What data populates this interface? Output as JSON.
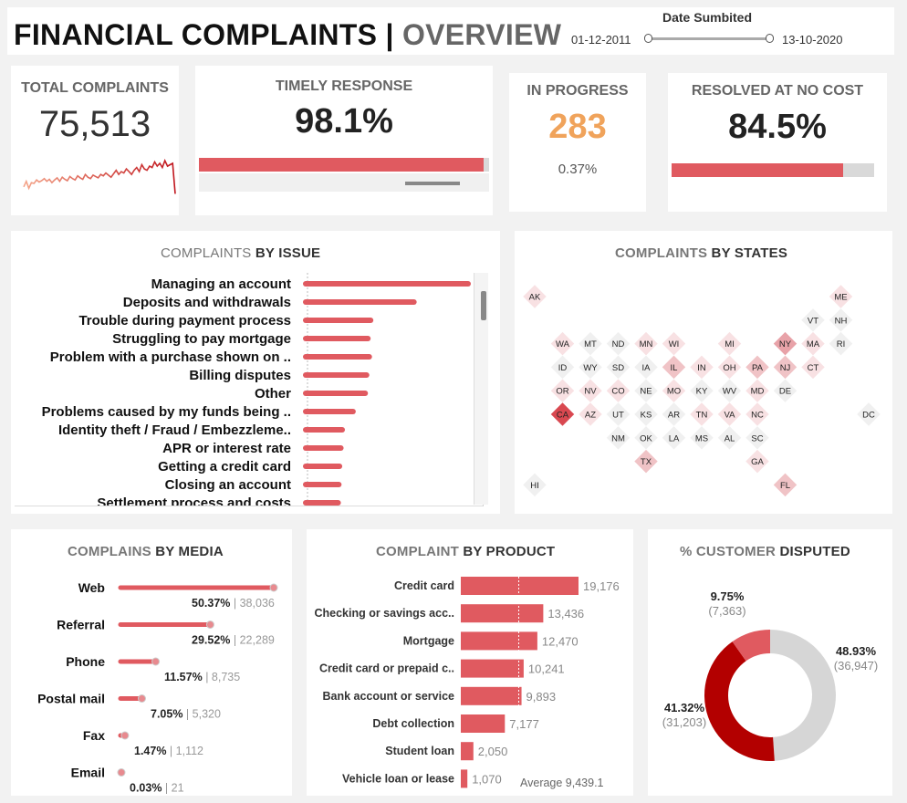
{
  "header": {
    "title": "FINANCIAL COMPLAINTS",
    "separator": "|",
    "subtitle": "OVERVIEW",
    "date_label": "Date Sumbited",
    "date_start": "01-12-2011",
    "date_end": "13-10-2020"
  },
  "kpis": {
    "total": {
      "label": "TOTAL COMPLAINTS",
      "value": "75,513"
    },
    "timely": {
      "label": "TIMELY RESPONSE",
      "value": "98.1%",
      "fraction": 0.981
    },
    "progress": {
      "label": "IN PROGRESS",
      "value": "283",
      "pct": "0.37%"
    },
    "resolved": {
      "label": "RESOLVED AT NO COST",
      "value": "84.5%",
      "fraction": 0.845
    }
  },
  "colors": {
    "accent": "#e05a60",
    "orange": "#f0a35b",
    "dark_red": "#b30000",
    "grey": "#d9d9d9"
  },
  "sparkline": [
    1400,
    1800,
    1300,
    1700,
    1650,
    1900,
    1750,
    1850,
    2000,
    1800,
    1950,
    1700,
    1900,
    2050,
    1800,
    2100,
    1950,
    1850,
    2150,
    2000,
    1900,
    2200,
    2050,
    1950,
    2300,
    2100,
    2000,
    2250,
    2150,
    2050,
    2300,
    2200,
    2400,
    2250,
    2100,
    2350,
    2600,
    2300,
    2500,
    2400,
    2700,
    2500,
    2300,
    2600,
    2800,
    2500,
    3000,
    2700,
    2600,
    2900,
    2800,
    3200,
    2900,
    3100,
    2800,
    3300,
    2900,
    3000,
    3100,
    900
  ],
  "sections": {
    "issue": {
      "a": "COMPLAINTS",
      "b": "BY ISSUE"
    },
    "states": {
      "a": "COMPLAINTS",
      "b": "BY STATES"
    },
    "media": {
      "a": "COMPLAINS",
      "b": "BY MEDIA"
    },
    "product": {
      "a": "COMPLAINT",
      "b": "BY PRODUCT"
    },
    "disputed": {
      "a": "% CUSTOMER",
      "b": "DISPUTED"
    }
  },
  "chart_data": [
    {
      "type": "bar",
      "categories": [
        "Managing an account",
        "Deposits and withdrawals",
        "Trouble during payment process",
        "Struggling to pay mortgage",
        "Problem with a purchase shown on ..",
        "Billing disputes",
        "Other",
        "Problems caused by my funds being ..",
        "Identity theft / Fraud / Embezzleme..",
        "APR or interest rate",
        "Getting a credit card",
        "Closing an account",
        "Settlement process and costs"
      ],
      "values": [
        12000,
        8000,
        4800,
        4600,
        4700,
        4500,
        4400,
        3500,
        2700,
        2600,
        2500,
        2450,
        2400
      ]
    },
    {
      "type": "bar",
      "categories": [
        "Web",
        "Referral",
        "Phone",
        "Postal mail",
        "Fax",
        "Email"
      ],
      "values": [
        38036,
        22289,
        8735,
        5320,
        1112,
        21
      ],
      "pct_labels": [
        "50.37%",
        "29.52%",
        "11.57%",
        "7.05%",
        "1.47%",
        "0.03%"
      ],
      "value_labels": [
        "38,036",
        "22,289",
        "8,735",
        "5,320",
        "1,112",
        "21"
      ]
    },
    {
      "type": "bar",
      "categories": [
        "Credit card",
        "Checking or savings acc..",
        "Mortgage",
        "Credit card or prepaid c..",
        "Bank account or service",
        "Debt collection",
        "Student loan",
        "Vehicle loan or lease"
      ],
      "values": [
        19176,
        13436,
        12470,
        10241,
        9893,
        7177,
        2050,
        1070
      ],
      "value_labels": [
        "19,176",
        "13,436",
        "12,470",
        "10,241",
        "9,893",
        "7,177",
        "2,050",
        "1,070"
      ],
      "average": 9439.1,
      "average_label": "Average 9,439.1"
    },
    {
      "type": "pie",
      "slices": [
        {
          "pct": "48.93%",
          "count": "(36,947)",
          "value": 36947,
          "color": "#d6d6d6"
        },
        {
          "pct": "41.32%",
          "count": "(31,203)",
          "value": 31203,
          "color": "#b30000"
        },
        {
          "pct": "9.75%",
          "count": "(7,363)",
          "value": 7363,
          "color": "#e05a60"
        }
      ]
    }
  ],
  "states": [
    {
      "s": "AK",
      "c": 0,
      "r": 0,
      "v": 1
    },
    {
      "s": "ME",
      "c": 11,
      "r": 0,
      "v": 1
    },
    {
      "s": "VT",
      "c": 10,
      "r": 1,
      "v": 0
    },
    {
      "s": "NH",
      "c": 11,
      "r": 1,
      "v": 0
    },
    {
      "s": "WA",
      "c": 1,
      "r": 2,
      "v": 1
    },
    {
      "s": "MT",
      "c": 2,
      "r": 2,
      "v": 0
    },
    {
      "s": "ND",
      "c": 3,
      "r": 2,
      "v": 0
    },
    {
      "s": "MN",
      "c": 4,
      "r": 2,
      "v": 1
    },
    {
      "s": "WI",
      "c": 5,
      "r": 2,
      "v": 1
    },
    {
      "s": "MI",
      "c": 7,
      "r": 2,
      "v": 1
    },
    {
      "s": "NY",
      "c": 9,
      "r": 2,
      "v": 3
    },
    {
      "s": "MA",
      "c": 10,
      "r": 2,
      "v": 1
    },
    {
      "s": "RI",
      "c": 11,
      "r": 2,
      "v": 0
    },
    {
      "s": "ID",
      "c": 1,
      "r": 3,
      "v": 0
    },
    {
      "s": "WY",
      "c": 2,
      "r": 3,
      "v": 0
    },
    {
      "s": "SD",
      "c": 3,
      "r": 3,
      "v": 0
    },
    {
      "s": "IA",
      "c": 4,
      "r": 3,
      "v": 0
    },
    {
      "s": "IL",
      "c": 5,
      "r": 3,
      "v": 2
    },
    {
      "s": "IN",
      "c": 6,
      "r": 3,
      "v": 1
    },
    {
      "s": "OH",
      "c": 7,
      "r": 3,
      "v": 1
    },
    {
      "s": "PA",
      "c": 8,
      "r": 3,
      "v": 2
    },
    {
      "s": "NJ",
      "c": 9,
      "r": 3,
      "v": 2
    },
    {
      "s": "CT",
      "c": 10,
      "r": 3,
      "v": 1
    },
    {
      "s": "OR",
      "c": 1,
      "r": 4,
      "v": 1
    },
    {
      "s": "NV",
      "c": 2,
      "r": 4,
      "v": 1
    },
    {
      "s": "CO",
      "c": 3,
      "r": 4,
      "v": 1
    },
    {
      "s": "NE",
      "c": 4,
      "r": 4,
      "v": 0
    },
    {
      "s": "MO",
      "c": 5,
      "r": 4,
      "v": 1
    },
    {
      "s": "KY",
      "c": 6,
      "r": 4,
      "v": 0
    },
    {
      "s": "WV",
      "c": 7,
      "r": 4,
      "v": 0
    },
    {
      "s": "MD",
      "c": 8,
      "r": 4,
      "v": 1
    },
    {
      "s": "DE",
      "c": 9,
      "r": 4,
      "v": 0
    },
    {
      "s": "CA",
      "c": 1,
      "r": 5,
      "v": 4
    },
    {
      "s": "AZ",
      "c": 2,
      "r": 5,
      "v": 1
    },
    {
      "s": "UT",
      "c": 3,
      "r": 5,
      "v": 0
    },
    {
      "s": "KS",
      "c": 4,
      "r": 5,
      "v": 0
    },
    {
      "s": "AR",
      "c": 5,
      "r": 5,
      "v": 0
    },
    {
      "s": "TN",
      "c": 6,
      "r": 5,
      "v": 1
    },
    {
      "s": "VA",
      "c": 7,
      "r": 5,
      "v": 1
    },
    {
      "s": "NC",
      "c": 8,
      "r": 5,
      "v": 1
    },
    {
      "s": "DC",
      "c": 12,
      "r": 5,
      "v": 0
    },
    {
      "s": "NM",
      "c": 3,
      "r": 6,
      "v": 0
    },
    {
      "s": "OK",
      "c": 4,
      "r": 6,
      "v": 0
    },
    {
      "s": "LA",
      "c": 5,
      "r": 6,
      "v": 0
    },
    {
      "s": "MS",
      "c": 6,
      "r": 6,
      "v": 0
    },
    {
      "s": "AL",
      "c": 7,
      "r": 6,
      "v": 0
    },
    {
      "s": "SC",
      "c": 8,
      "r": 6,
      "v": 0
    },
    {
      "s": "TX",
      "c": 4,
      "r": 7,
      "v": 2
    },
    {
      "s": "GA",
      "c": 8,
      "r": 7,
      "v": 1
    },
    {
      "s": "HI",
      "c": 0,
      "r": 8,
      "v": 0
    },
    {
      "s": "FL",
      "c": 9,
      "r": 8,
      "v": 2
    }
  ]
}
